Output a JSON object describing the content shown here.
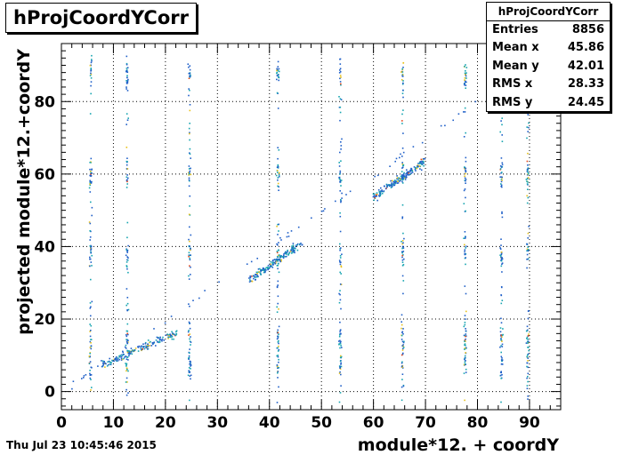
{
  "chart_data": {
    "type": "scatter",
    "title": "hProjCoordYCorr",
    "xlabel": "module*12. + coordY",
    "ylabel": "projected module*12.+coordY",
    "xlim": [
      0,
      96
    ],
    "ylim": [
      -5,
      96
    ],
    "xticks": [
      0,
      10,
      20,
      30,
      40,
      50,
      60,
      70,
      80,
      90
    ],
    "yticks": [
      0,
      20,
      40,
      60,
      80
    ],
    "grid": true,
    "colors": {
      "low": "#1f5fc8",
      "mid": "#17a5b0",
      "high": "#e8c21b",
      "peak": "#e34a1e"
    },
    "vertical_bands": [
      5.5,
      12.5,
      24.5,
      41.5,
      53.5,
      65.5,
      77.5,
      84.5,
      89.5
    ],
    "diagonal_segments": [
      {
        "x": [
          7.5,
          22
        ],
        "y": [
          7.5,
          16.5
        ]
      },
      {
        "x": [
          36,
          46
        ],
        "y": [
          31,
          41
        ]
      },
      {
        "x": [
          60,
          70
        ],
        "y": [
          54,
          64
        ]
      }
    ],
    "stats": {
      "title": "hProjCoordYCorr",
      "rows": [
        {
          "label": "Entries",
          "value": "8856"
        },
        {
          "label": "Mean x",
          "value": "45.86"
        },
        {
          "label": "Mean y",
          "value": "42.01"
        },
        {
          "label": "RMS x",
          "value": "28.33"
        },
        {
          "label": "RMS y",
          "value": "24.45"
        }
      ]
    }
  },
  "footer": {
    "date": "Thu Jul 23 10:45:46 2015"
  }
}
